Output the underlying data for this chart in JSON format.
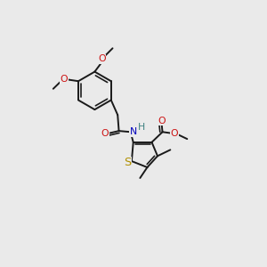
{
  "bg_color": "#eaeaea",
  "bond_color": "#1a1a1a",
  "s_color": "#b09000",
  "n_color": "#0000bb",
  "o_color": "#cc1111",
  "h_color": "#3d8080",
  "lw": 1.4,
  "fs": 7.8,
  "xlim": [
    0,
    10
  ],
  "ylim": [
    0,
    10
  ]
}
